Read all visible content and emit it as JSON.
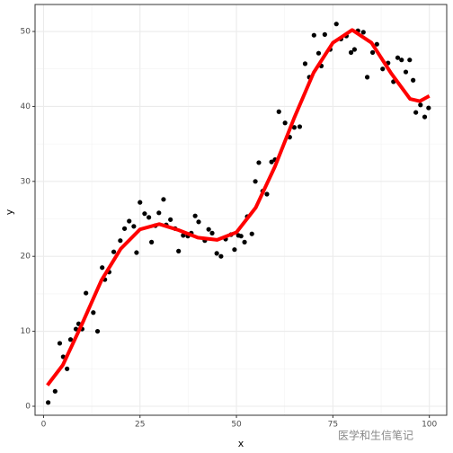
{
  "chart_data": {
    "type": "scatter",
    "x_label": "x",
    "y_label": "y",
    "xlim": [
      -2.2,
      104.5
    ],
    "ylim": [
      -1.2,
      53.6
    ],
    "xticks": [
      0,
      25,
      50,
      75,
      100
    ],
    "yticks": [
      0,
      10,
      20,
      30,
      40,
      50
    ],
    "grid": true,
    "series": [
      {
        "type": "scatter",
        "color": "#000000",
        "x": [
          1.2,
          3,
          4.2,
          5.1,
          6.1,
          7,
          8.4,
          9.1,
          10,
          11,
          12.9,
          14,
          15.2,
          15.9,
          17,
          18.2,
          19.9,
          21,
          22.2,
          23.4,
          24.1,
          25,
          26.2,
          27.3,
          28,
          29,
          29.9,
          31.1,
          31.8,
          32.9,
          34.1,
          35,
          36.2,
          37.4,
          38.3,
          39.3,
          40.2,
          41.8,
          42.8,
          43.7,
          44.9,
          46,
          47.2,
          48.6,
          49.5,
          50.5,
          51.2,
          52.1,
          52.8,
          54,
          54.9,
          55.8,
          56.8,
          57.9,
          59.1,
          60,
          61,
          62.6,
          63.8,
          65,
          66.4,
          67.8,
          68.9,
          70.1,
          71.3,
          72,
          72.9,
          74.3,
          75.9,
          77.1,
          78.5,
          79.7,
          80.6,
          81.5,
          82.9,
          83.9,
          85.3,
          86.4,
          87.9,
          89.3,
          90.7,
          91.8,
          92.8,
          93.9,
          94.9,
          95.8,
          96.5,
          97.7,
          98.8,
          99.8
        ],
        "values": [
          0.5,
          2,
          8.4,
          6.6,
          5,
          8.9,
          10.3,
          11,
          10.3,
          15.1,
          12.5,
          10,
          18.5,
          16.9,
          17.9,
          20.6,
          22.1,
          23.7,
          24.7,
          24,
          20.5,
          27.2,
          25.7,
          25.2,
          21.9,
          24.1,
          25.8,
          27.6,
          24.2,
          24.9,
          23.7,
          20.7,
          22.8,
          22.7,
          23.1,
          25.4,
          24.6,
          22.1,
          23.6,
          23.1,
          20.4,
          20,
          22.3,
          22.9,
          20.9,
          22.8,
          22.7,
          21.9,
          25.3,
          23,
          30,
          32.5,
          28.7,
          28.3,
          32.6,
          32.9,
          39.3,
          37.8,
          35.9,
          37.2,
          37.3,
          45.7,
          43.9,
          49.5,
          47.1,
          45.4,
          49.6,
          47.6,
          51,
          49,
          49.4,
          47.2,
          47.6,
          50.1,
          49.9,
          43.9,
          47.2,
          48.3,
          45,
          45.8,
          43.3,
          46.5,
          46.2,
          44.6,
          46.2,
          43.5,
          39.2,
          40.2,
          38.6,
          39.8
        ]
      },
      {
        "type": "line",
        "color": "#ff0000",
        "x": [
          1,
          5,
          10,
          15,
          20,
          25,
          30,
          35,
          40,
          45,
          50,
          55,
          60,
          65,
          70,
          75,
          80,
          85,
          90,
          95,
          97.5,
          100
        ],
        "values": [
          2.8,
          5.5,
          11,
          16.8,
          21,
          23.6,
          24.3,
          23.5,
          22.5,
          22.2,
          23.2,
          26.5,
          32,
          38.5,
          44.5,
          48.5,
          50.2,
          48.5,
          44.5,
          41,
          40.7,
          41.4
        ]
      }
    ]
  },
  "watermark": "医学和生信笔记"
}
